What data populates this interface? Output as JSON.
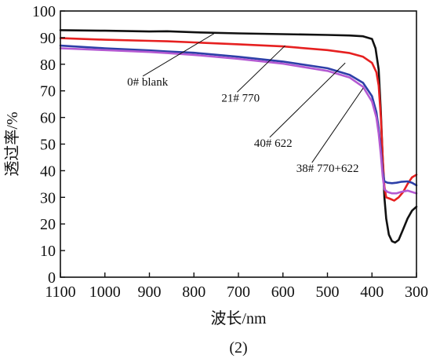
{
  "chart_data": {
    "type": "line",
    "caption": "(2)",
    "xlabel": "波长/nm",
    "ylabel": "透过率/%",
    "xlim": [
      1100,
      300
    ],
    "ylim": [
      0,
      100
    ],
    "x_ticks": [
      1100,
      1000,
      900,
      800,
      700,
      600,
      500,
      400,
      300
    ],
    "y_ticks": [
      0,
      10,
      20,
      30,
      40,
      50,
      60,
      70,
      80,
      90,
      100
    ],
    "grid": false,
    "annotations": [
      {
        "text": "0# blank",
        "series": "0# blank",
        "label_at": [
          950,
          72
        ],
        "point_at": [
          755,
          91.5
        ]
      },
      {
        "text": "21# 770",
        "series": "21# 770",
        "label_at": [
          738,
          66
        ],
        "point_at": [
          595,
          87
        ]
      },
      {
        "text": "40# 622",
        "series": "40# 622",
        "label_at": [
          665,
          49
        ],
        "point_at": [
          460,
          80.5
        ]
      },
      {
        "text": "38# 770+622",
        "series": "38# 770+622",
        "label_at": [
          570,
          39.5
        ],
        "point_at": [
          420,
          71
        ]
      }
    ],
    "series": [
      {
        "name": "0# blank",
        "color": "#111111",
        "points": [
          [
            1100,
            92.8
          ],
          [
            1000,
            92.6
          ],
          [
            900,
            92.3
          ],
          [
            860,
            92.4
          ],
          [
            800,
            92.0
          ],
          [
            700,
            91.6
          ],
          [
            600,
            91.3
          ],
          [
            500,
            91.0
          ],
          [
            450,
            90.8
          ],
          [
            420,
            90.5
          ],
          [
            400,
            89.5
          ],
          [
            392,
            86
          ],
          [
            385,
            78
          ],
          [
            380,
            62
          ],
          [
            376,
            45
          ],
          [
            372,
            30
          ],
          [
            368,
            22
          ],
          [
            362,
            16
          ],
          [
            355,
            13.5
          ],
          [
            348,
            13.0
          ],
          [
            340,
            14.0
          ],
          [
            330,
            18.0
          ],
          [
            320,
            22.0
          ],
          [
            310,
            25.0
          ],
          [
            300,
            26.5
          ]
        ]
      },
      {
        "name": "21# 770",
        "color": "#e62020",
        "points": [
          [
            1100,
            89.8
          ],
          [
            1000,
            89.2
          ],
          [
            900,
            88.8
          ],
          [
            860,
            88.6
          ],
          [
            800,
            88.2
          ],
          [
            700,
            87.5
          ],
          [
            600,
            86.7
          ],
          [
            500,
            85.3
          ],
          [
            450,
            84.2
          ],
          [
            420,
            82.8
          ],
          [
            400,
            80.5
          ],
          [
            390,
            77
          ],
          [
            385,
            72
          ],
          [
            380,
            60
          ],
          [
            376,
            45
          ],
          [
            372,
            34
          ],
          [
            368,
            30
          ],
          [
            360,
            29.5
          ],
          [
            350,
            28.8
          ],
          [
            340,
            30
          ],
          [
            330,
            32
          ],
          [
            320,
            35
          ],
          [
            310,
            37.5
          ],
          [
            300,
            38.5
          ]
        ]
      },
      {
        "name": "40# 622",
        "color": "#2d3fa8",
        "points": [
          [
            1100,
            87.0
          ],
          [
            1000,
            86.0
          ],
          [
            900,
            85.2
          ],
          [
            860,
            84.8
          ],
          [
            800,
            84.3
          ],
          [
            700,
            82.8
          ],
          [
            600,
            81.0
          ],
          [
            500,
            78.5
          ],
          [
            450,
            76.0
          ],
          [
            420,
            73.0
          ],
          [
            400,
            68.0
          ],
          [
            390,
            62
          ],
          [
            385,
            56
          ],
          [
            380,
            48
          ],
          [
            376,
            40
          ],
          [
            372,
            36
          ],
          [
            365,
            35.5
          ],
          [
            355,
            35.3
          ],
          [
            345,
            35.5
          ],
          [
            335,
            35.8
          ],
          [
            320,
            36.0
          ],
          [
            310,
            35.5
          ],
          [
            300,
            34.5
          ]
        ]
      },
      {
        "name": "38# 770+622",
        "color": "#b45ad2",
        "points": [
          [
            1100,
            86.0
          ],
          [
            1000,
            85.3
          ],
          [
            900,
            84.6
          ],
          [
            860,
            84.2
          ],
          [
            800,
            83.5
          ],
          [
            700,
            82.0
          ],
          [
            600,
            80.2
          ],
          [
            500,
            77.5
          ],
          [
            450,
            75.0
          ],
          [
            420,
            71.5
          ],
          [
            400,
            66.0
          ],
          [
            390,
            60
          ],
          [
            385,
            54
          ],
          [
            380,
            46
          ],
          [
            376,
            38
          ],
          [
            372,
            33
          ],
          [
            365,
            32.0
          ],
          [
            355,
            31.5
          ],
          [
            345,
            31.5
          ],
          [
            335,
            32.0
          ],
          [
            320,
            32.5
          ],
          [
            310,
            32.0
          ],
          [
            300,
            31.5
          ]
        ]
      }
    ]
  }
}
